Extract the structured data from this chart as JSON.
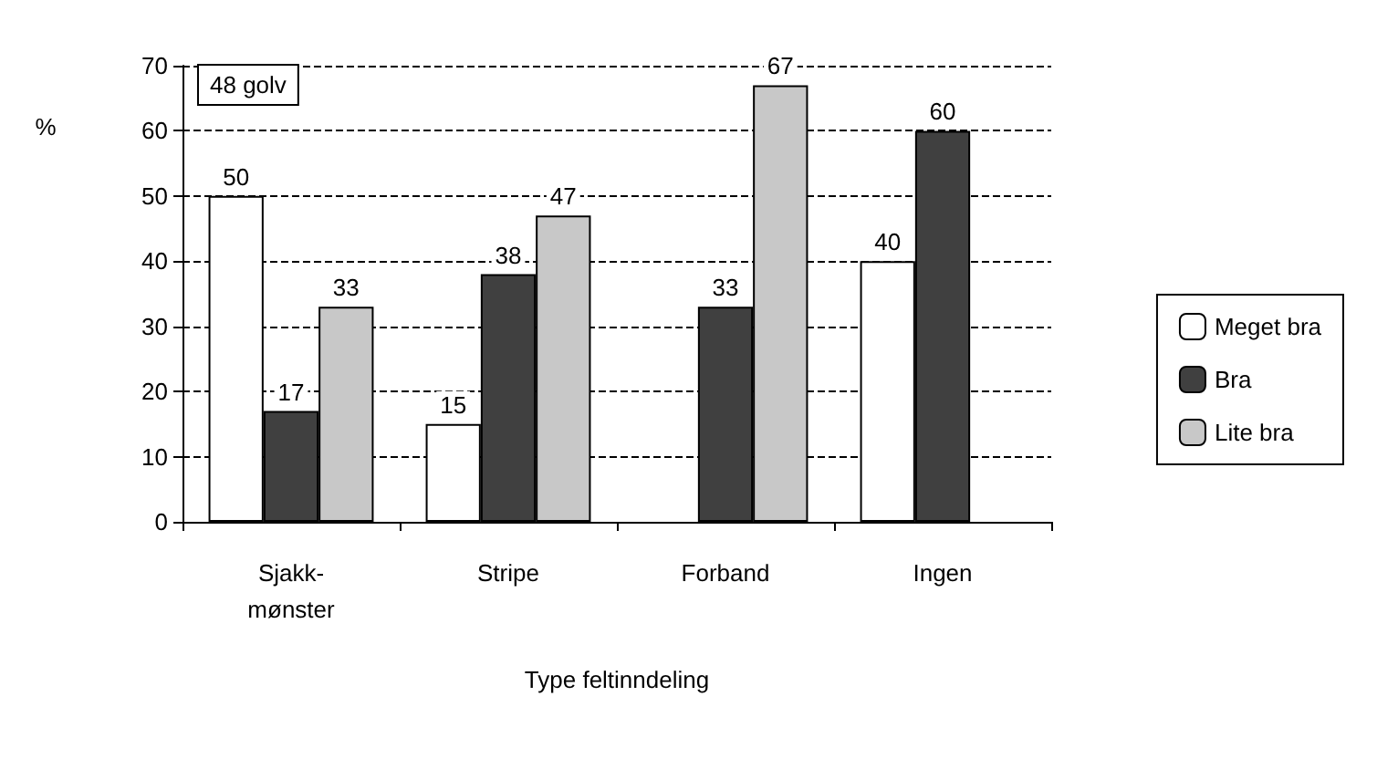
{
  "chart_data": {
    "type": "bar",
    "categories": [
      "Sjakk-\nmønster",
      "Stripe",
      "Forband",
      "Ingen"
    ],
    "series": [
      {
        "name": "Meget bra",
        "color": "#ffffff",
        "values": [
          50,
          15,
          null,
          40
        ]
      },
      {
        "name": "Bra",
        "color": "#404040",
        "values": [
          17,
          38,
          33,
          60
        ]
      },
      {
        "name": "Lite bra",
        "color": "#c8c8c8",
        "values": [
          33,
          47,
          67,
          null
        ]
      }
    ],
    "ylabel": "%",
    "xlabel": "Type feltinndeling",
    "annotations": [
      "48 golv"
    ],
    "ylim": [
      0,
      70
    ],
    "yticks": [
      0,
      10,
      20,
      30,
      40,
      50,
      60,
      70
    ],
    "grid": "y",
    "legend": "right",
    "data_labels": true
  }
}
